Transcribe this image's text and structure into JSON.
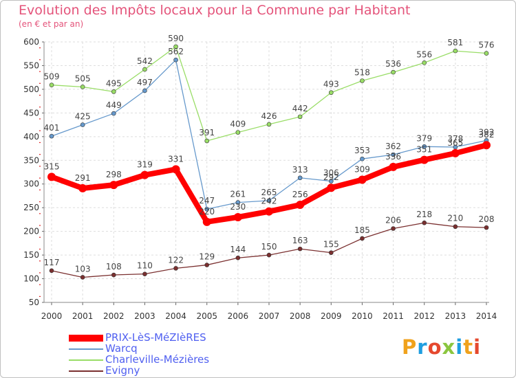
{
  "title": "Evolution des Impôts locaux pour la Commune par Habitant",
  "subtitle": "(en € et par an)",
  "logo": {
    "text": "Proxiti",
    "colors": [
      "#f0a21c",
      "#1f9ee0",
      "#e5482e",
      "#8bc63f",
      "#1f9ee0",
      "#f0a21c",
      "#e5482e"
    ]
  },
  "chart_data": {
    "type": "line",
    "title": "Evolution des Impôts locaux pour la Commune par Habitant",
    "subtitle": "(en € et par an)",
    "xlabel": "",
    "ylabel": "",
    "x": [
      2000,
      2001,
      2002,
      2003,
      2004,
      2005,
      2006,
      2007,
      2008,
      2009,
      2010,
      2011,
      2012,
      2013,
      2014
    ],
    "ylim": [
      50,
      600
    ],
    "yticks": [
      50,
      100,
      150,
      200,
      250,
      300,
      350,
      400,
      450,
      500,
      550,
      600
    ],
    "grid": true,
    "legend_position": "bottom-left",
    "series": [
      {
        "name": "PRIX-LèS-MéZIèRES",
        "color": "#ff0000",
        "values": [
          315,
          291,
          298,
          319,
          331,
          220,
          230,
          242,
          256,
          292,
          309,
          336,
          351,
          365,
          382
        ],
        "labels": [
          "315",
          "291",
          "298",
          "319",
          "331",
          "220",
          "230",
          "242",
          "256",
          "292",
          "309",
          "336",
          "351",
          "365",
          "382"
        ]
      },
      {
        "name": "Warcq",
        "color": "#6699cc",
        "values": [
          401,
          425,
          449,
          497,
          562,
          247,
          261,
          265,
          313,
          306,
          353,
          362,
          379,
          378,
          392
        ],
        "labels": [
          "401",
          "425",
          "449",
          "497",
          "562",
          "247",
          "261",
          "265",
          "313",
          "306",
          "353",
          "362",
          "379",
          "378",
          "392"
        ]
      },
      {
        "name": "Charleville-Mézières",
        "color": "#99dd66",
        "values": [
          509,
          505,
          495,
          542,
          590,
          391,
          409,
          426,
          442,
          493,
          518,
          536,
          556,
          581,
          576
        ],
        "labels": [
          "509",
          "505",
          "495",
          "542",
          "590",
          "391",
          "409",
          "426",
          "442",
          "493",
          "518",
          "536",
          "556",
          "581",
          "576"
        ]
      },
      {
        "name": "Evigny",
        "color": "#7a2f2f",
        "values": [
          117,
          103,
          108,
          110,
          122,
          129,
          144,
          150,
          163,
          155,
          185,
          206,
          218,
          210,
          208
        ],
        "labels": [
          "117",
          "103",
          "108",
          "110",
          "122",
          "129",
          "144",
          "150",
          "163",
          "155",
          "185",
          "206",
          "218",
          "210",
          "208"
        ]
      }
    ]
  }
}
